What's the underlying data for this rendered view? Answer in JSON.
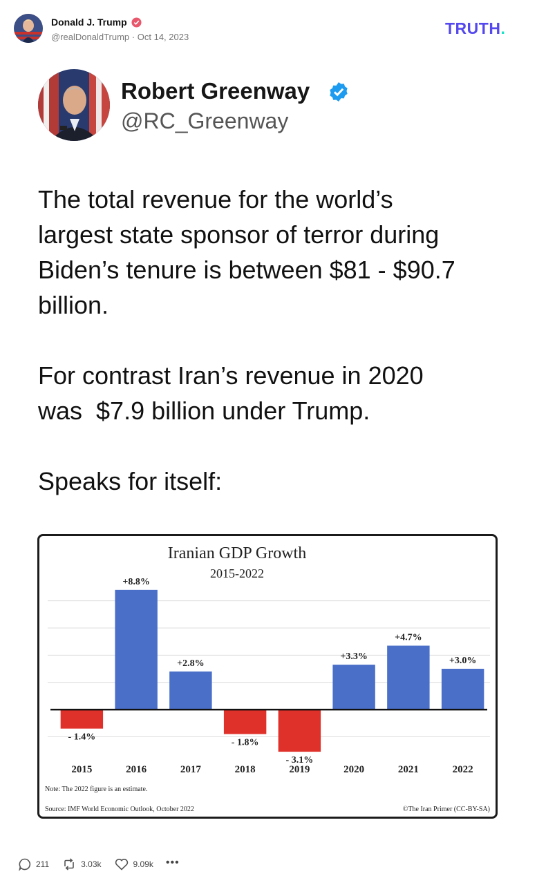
{
  "post": {
    "author_name": "Donald J. Trump",
    "handle": "@realDonaldTrump",
    "separator": "·",
    "date": "Oct 14, 2023",
    "brand": "TRUTH",
    "brand_dot": "."
  },
  "embed": {
    "name": "Robert Greenway",
    "handle": "@RC_Greenway",
    "text": "The total revenue for the world’s\nlargest state sponsor of terror during\nBiden’s tenure is between $81 - $90.7\nbillion.\n\nFor contrast Iran’s revenue in 2020\nwas  $7.9 billion under Trump.\n\nSpeaks for itself:"
  },
  "chart_data": {
    "type": "bar",
    "title": "Iranian GDP Growth",
    "subtitle": "2015-2022",
    "categories": [
      "2015",
      "2016",
      "2017",
      "2018",
      "2019",
      "2020",
      "2021",
      "2022"
    ],
    "values": [
      -1.4,
      8.8,
      2.8,
      -1.8,
      -3.1,
      3.3,
      4.7,
      3.0
    ],
    "data_labels": [
      "- 1.4%",
      "+8.8%",
      "+2.8%",
      "- 1.8%",
      "- 3.1%",
      "+3.3%",
      "+4.7%",
      "+3.0%"
    ],
    "note": "Note: The 2022 figure is an estimate.",
    "source": "Source: IMF World Economic Outlook, October 2022",
    "credit": "©The Iran Primer (CC-BY-SA)",
    "ylim": [
      -3.4,
      9.3
    ],
    "grid": true,
    "colors": {
      "positive": "#4a6fc9",
      "negative": "#e0302a"
    }
  },
  "actions": {
    "replies": "211",
    "retruths": "3.03k",
    "likes": "9.09k",
    "more": "•••"
  },
  "colors": {
    "brand": "#5448ee",
    "brand_accent": "#17e2c6",
    "verified_red": "#e8576b",
    "verified_blue": "#1d9bf0"
  },
  "icons": [
    "reply-icon",
    "retruth-icon",
    "like-icon",
    "more-icon",
    "verified-icon"
  ]
}
